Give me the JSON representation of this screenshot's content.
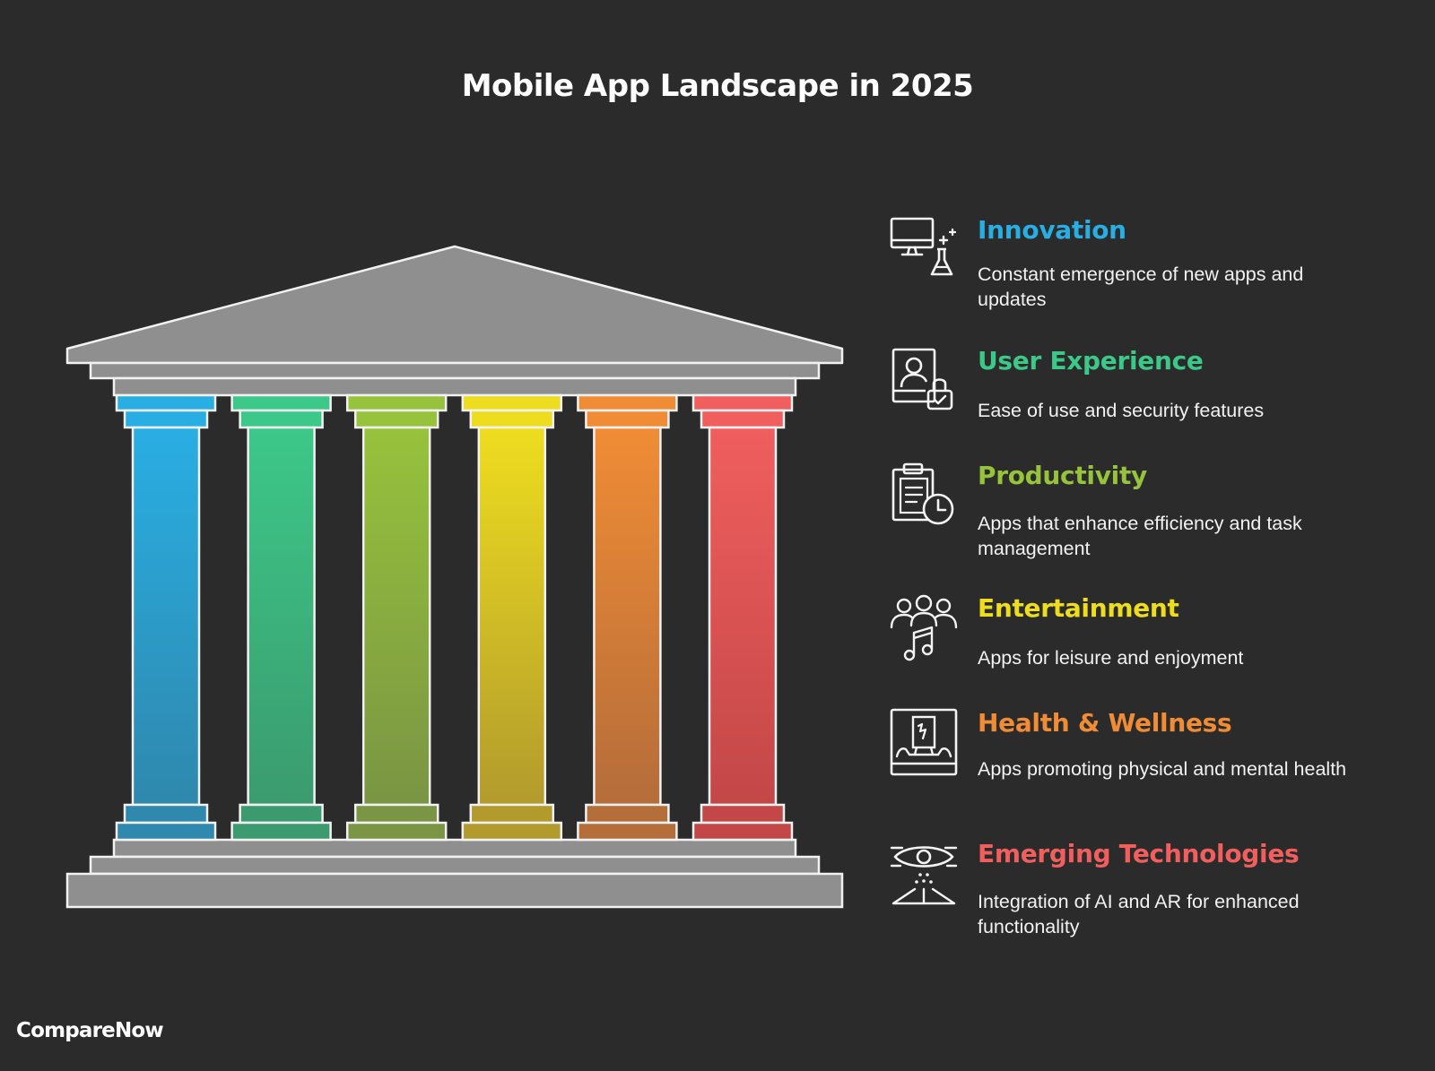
{
  "title": "Mobile App Landscape in 2025",
  "brand": "CompareNow",
  "colors": {
    "background": "#2b2b2b",
    "stone": "#8f8f8f",
    "outline": "#f2f2f2"
  },
  "pillars": [
    {
      "icon": "computer-flask-icon",
      "title": "Innovation",
      "description": "Constant emergence of new apps and updates",
      "color": "#29aee3",
      "dark": "#2f88ad"
    },
    {
      "icon": "user-lock-icon",
      "title": "User Experience",
      "description": "Ease of use and security features",
      "color": "#3cc888",
      "dark": "#3b9b6f"
    },
    {
      "icon": "clipboard-clock-icon",
      "title": "Productivity",
      "description": "Apps that enhance efficiency and task management",
      "color": "#97c23c",
      "dark": "#7a9543"
    },
    {
      "icon": "group-music-icon",
      "title": "Entertainment",
      "description": "Apps for leisure and enjoyment",
      "color": "#eedd1f",
      "dark": "#b29b2c"
    },
    {
      "icon": "health-monitor-icon",
      "title": "Health & Wellness",
      "description": "Apps promoting physical and mental health",
      "color": "#f08c35",
      "dark": "#b56d3a"
    },
    {
      "icon": "eye-tech-icon",
      "title": "Emerging Technologies",
      "description": "Integration of AI and AR for enhanced functionality",
      "color": "#f05e5e",
      "dark": "#c34747"
    }
  ]
}
